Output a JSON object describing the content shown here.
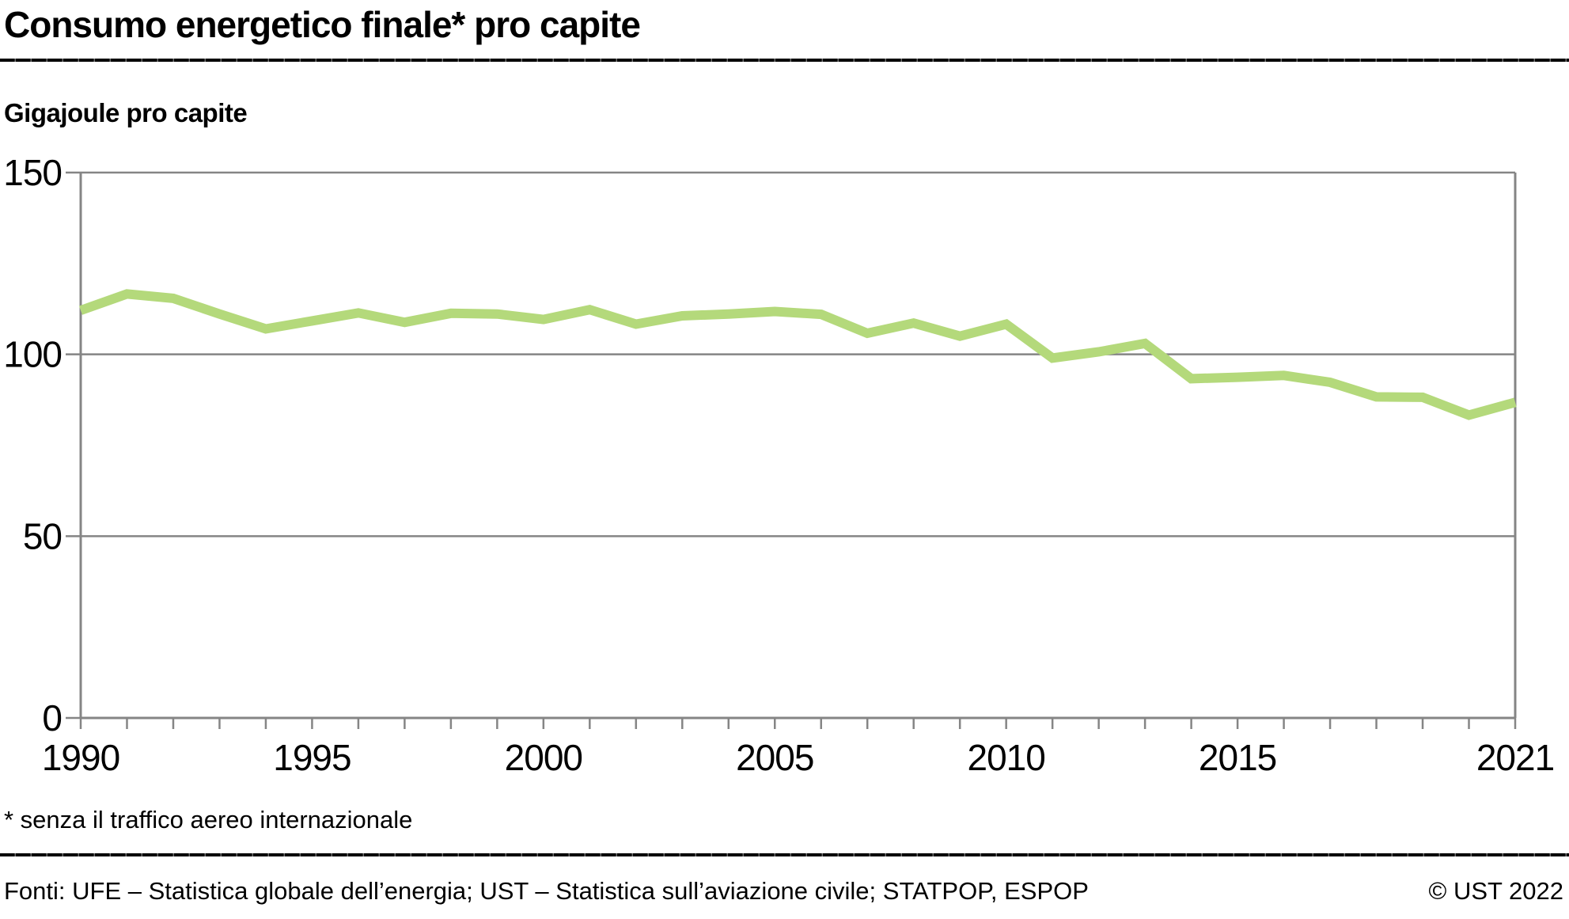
{
  "title": "Consumo energetico finale* pro capite",
  "unit_label": "Gigajoule pro capite",
  "footnote": "* senza il traffico aereo internazionale",
  "footer": {
    "sources": "Fonti: UFE – Statistica globale dell’energia; UST – Statistica sull’aviazione civile; STATPOP, ESPOP",
    "copyright": "© UST 2022"
  },
  "colors": {
    "line": "#b4d97b",
    "axis": "#858585",
    "text": "#000000",
    "background": "#ffffff"
  },
  "chart_data": {
    "type": "line",
    "title": "Consumo energetico finale* pro capite",
    "ylabel": "Gigajoule pro capite",
    "xlabel": "",
    "ylim": [
      0,
      150
    ],
    "yticks": [
      0,
      50,
      100,
      150
    ],
    "xtick_labels": [
      1990,
      1995,
      2000,
      2005,
      2010,
      2015,
      2021
    ],
    "grid": true,
    "legend": "none",
    "x": [
      1990,
      1991,
      1992,
      1993,
      1994,
      1995,
      1996,
      1997,
      1998,
      1999,
      2000,
      2001,
      2002,
      2003,
      2004,
      2005,
      2006,
      2007,
      2008,
      2009,
      2010,
      2011,
      2012,
      2013,
      2014,
      2015,
      2016,
      2017,
      2018,
      2019,
      2020,
      2021
    ],
    "series": [
      {
        "name": "Consumo energetico finale pro capite (gigajoule)",
        "values": [
          112.1,
          116.6,
          115.4,
          111.1,
          107.0,
          109.2,
          111.4,
          108.8,
          111.3,
          111.1,
          109.6,
          112.3,
          108.3,
          110.6,
          111.1,
          111.8,
          111.0,
          105.8,
          108.6,
          105.0,
          108.3,
          99.0,
          100.7,
          103.0,
          93.3,
          93.7,
          94.2,
          92.3,
          88.3,
          88.2,
          83.3,
          86.8
        ]
      }
    ]
  }
}
